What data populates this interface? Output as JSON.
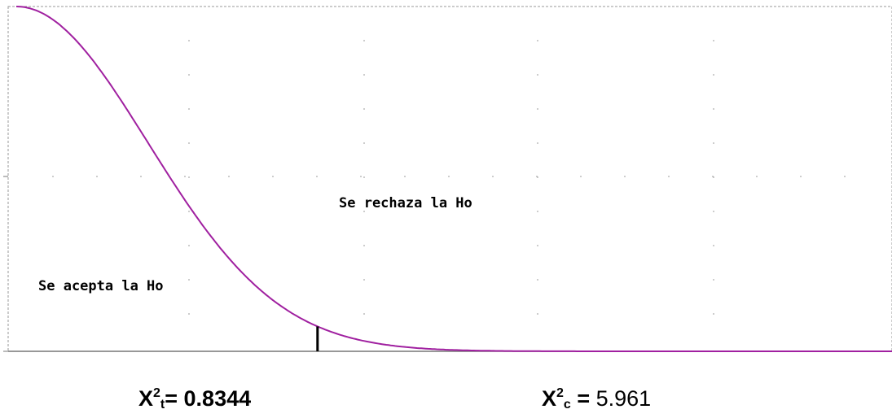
{
  "chart_data": {
    "type": "line",
    "curve_color": "#a020a0",
    "marker_color": "#000000",
    "grid": true,
    "x_range": [
      0,
      5
    ],
    "y_range": [
      0,
      1
    ],
    "curve_width_sd": 0.75,
    "critical_x": 1.72,
    "region_labels": {
      "reject": "Se rechaza la Ho",
      "accept": "Se acepta la Ho"
    }
  },
  "stats": {
    "table": {
      "symbol": "X",
      "sup": "2",
      "sub": "t",
      "eq": "= ",
      "value": "0.8344"
    },
    "calc": {
      "symbol": "X",
      "sup": "2",
      "sub": "c",
      "eq": " = ",
      "value": "5.961"
    }
  }
}
